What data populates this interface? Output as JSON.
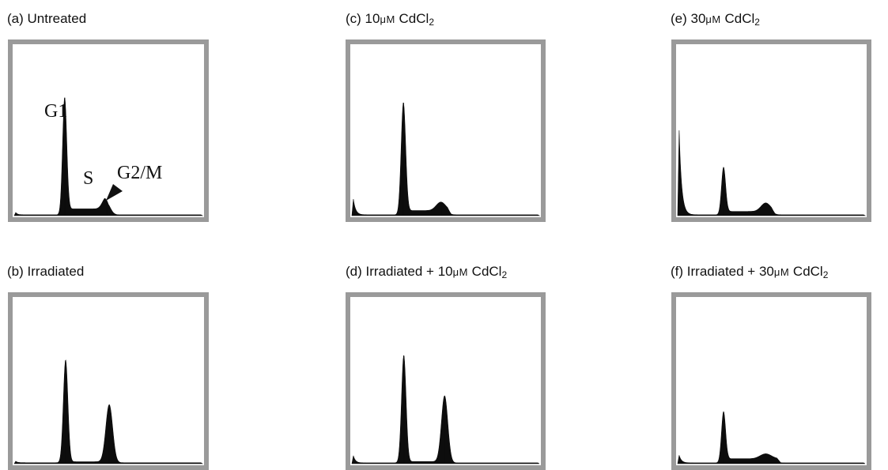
{
  "panels": [
    {
      "id": "a",
      "label": "(a) Untreated"
    },
    {
      "id": "b",
      "label": "(b) Irradiated"
    },
    {
      "id": "c",
      "label_pre": "(c) 10",
      "label_mu": "μM",
      "label_cd": " CdCl",
      "label_sub": "2"
    },
    {
      "id": "d",
      "label_pre": "(d)  Irradiated + 10",
      "label_mu": "μM",
      "label_cd": " CdCl",
      "label_sub": "2"
    },
    {
      "id": "e",
      "label_pre": "(e) 30",
      "label_mu": "μM",
      "label_cd": " CdCl",
      "label_sub": "2"
    },
    {
      "id": "f",
      "label_pre": "(f)  Irradiated + 30",
      "label_mu": "μM",
      "label_cd": " CdCl",
      "label_sub": "2"
    }
  ],
  "annotations": {
    "g1": "G1",
    "s": "S",
    "g2m": "G2/M"
  },
  "chart_data": [
    {
      "id": "a",
      "type": "area",
      "ylim": [
        0,
        100
      ],
      "xlim": [
        0,
        100
      ],
      "peaks": [
        {
          "x": 26.8,
          "height": 69,
          "width": 1.1
        },
        {
          "x": 49,
          "height": 7,
          "width": 2
        }
      ],
      "plateau": {
        "from": 27,
        "to": 50,
        "level": 3.5
      },
      "debris": {
        "height": 3,
        "decay": 1
      },
      "baseline": 0.5
    },
    {
      "id": "b",
      "type": "area",
      "ylim": [
        0,
        100
      ],
      "xlim": [
        0,
        100
      ],
      "peaks": [
        {
          "x": 27.3,
          "height": 62,
          "width": 1.2
        },
        {
          "x": 50.5,
          "height": 35,
          "width": 1.8
        }
      ],
      "plateau": {
        "from": 27,
        "to": 51,
        "level": 0.6
      },
      "debris": {
        "height": 2,
        "decay": 1
      },
      "baseline": 0.6
    },
    {
      "id": "c",
      "type": "area",
      "ylim": [
        0,
        100
      ],
      "xlim": [
        0,
        100
      ],
      "peaks": [
        {
          "x": 27.5,
          "height": 66,
          "width": 1.2
        },
        {
          "x": 47.5,
          "height": 5,
          "width": 2.5
        }
      ],
      "plateau": {
        "from": 28,
        "to": 53,
        "level": 2.5
      },
      "debris": {
        "height": 18,
        "decay": 1.2
      },
      "baseline": 0.5
    },
    {
      "id": "d",
      "type": "area",
      "ylim": [
        0,
        100
      ],
      "xlim": [
        0,
        100
      ],
      "peaks": [
        {
          "x": 27.7,
          "height": 65,
          "width": 1.2
        },
        {
          "x": 49.5,
          "height": 40,
          "width": 1.7
        }
      ],
      "plateau": {
        "from": 28,
        "to": 51,
        "level": 0.8
      },
      "debris": {
        "height": 9,
        "decay": 1.1
      },
      "baseline": 0.5
    },
    {
      "id": "e",
      "type": "area",
      "ylim": [
        0,
        100
      ],
      "xlim": [
        0,
        100
      ],
      "peaks": [
        {
          "x": 24.5,
          "height": 28,
          "width": 1.1
        },
        {
          "x": 47,
          "height": 5,
          "width": 2.5
        }
      ],
      "plateau": {
        "from": 25,
        "to": 52,
        "level": 2.0
      },
      "debris": {
        "height": 92,
        "decay": 1.3
      },
      "baseline": 0.5
    },
    {
      "id": "f",
      "type": "area",
      "ylim": [
        0,
        100
      ],
      "xlim": [
        0,
        100
      ],
      "peaks": [
        {
          "x": 24.5,
          "height": 31,
          "width": 1.1
        },
        {
          "x": 47,
          "height": 3,
          "width": 3
        }
      ],
      "plateau": {
        "from": 25,
        "to": 55,
        "level": 2.5
      },
      "debris": {
        "height": 9,
        "decay": 1.2
      },
      "baseline": 0.5
    }
  ]
}
